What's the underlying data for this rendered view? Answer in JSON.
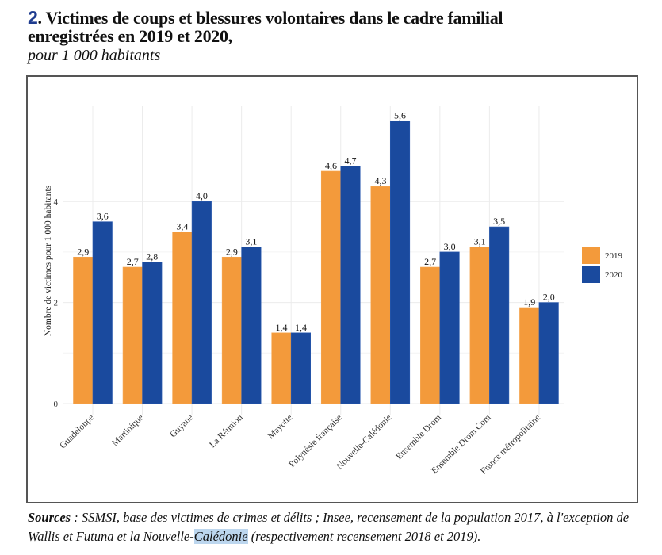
{
  "header": {
    "number": "2",
    "title_rest": ". Victimes de coups et blessures volontaires dans le cadre familial",
    "title_line2": "enregistrées en 2019 et 2020,",
    "subtitle": "pour 1 000 habitants"
  },
  "footer": {
    "sources_label": "Sources",
    "sources_sep": " : ",
    "sources_text1": "SSMSI, base des victimes de crimes et délits ; Insee, recensement de la population 2017, à l'exception de Wallis et Futuna et la Nouvelle-",
    "sources_highlight": "Calédonie",
    "sources_text2": " (respectivement recensement 2018 et 2019)."
  },
  "chart_data": {
    "type": "bar",
    "title": "Victimes de coups et blessures volontaires dans le cadre familial enregistrées en 2019 et 2020, pour 1 000 habitants",
    "xlabel": "",
    "ylabel": "Nombre de victimes pour 1 000 habitants",
    "ylim": [
      0,
      5.8
    ],
    "yticks": [
      0,
      2,
      4
    ],
    "ytick_labels": [
      "0",
      "2",
      "4"
    ],
    "grid": true,
    "legend_position": "right",
    "categories": [
      "Guadeloupe",
      "Martinique",
      "Guyane",
      "La Réunion",
      "Mayotte",
      "Polynésie française",
      "Nouvelle-Calédonie",
      "Ensemble Drom",
      "Ensemble Drom Com",
      "France métropolitaine"
    ],
    "series": [
      {
        "name": "2019",
        "color": "#f39a3b",
        "values": [
          2.9,
          2.7,
          3.4,
          2.9,
          1.4,
          4.6,
          4.3,
          2.7,
          3.1,
          1.9
        ],
        "labels": [
          "2,9",
          "2,7",
          "3,4",
          "2,9",
          "1,4",
          "4,6",
          "4,3",
          "2,7",
          "3,1",
          "1,9"
        ]
      },
      {
        "name": "2020",
        "color": "#1a4a9e",
        "values": [
          3.6,
          2.8,
          4.0,
          3.1,
          1.4,
          4.7,
          5.6,
          3.0,
          3.5,
          2.0
        ],
        "labels": [
          "3,6",
          "2,8",
          "4,0",
          "3,1",
          "1,4",
          "4,7",
          "5,6",
          "3,0",
          "3,5",
          "2,0"
        ]
      }
    ]
  }
}
